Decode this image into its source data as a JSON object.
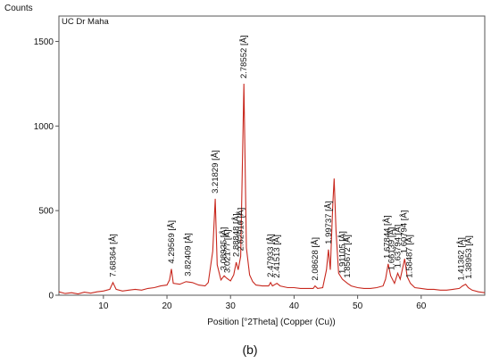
{
  "chart_data": {
    "type": "line",
    "title": "UC Dr Maha",
    "ylabel": "Counts",
    "xlabel": "Position [°2Theta] (Copper (Cu))",
    "caption": "(b)",
    "xlim": [
      3,
      70
    ],
    "ylim": [
      0,
      1650
    ],
    "xticks": [
      10,
      20,
      30,
      40,
      50,
      60
    ],
    "yticks": [
      0,
      500,
      1000,
      1500
    ],
    "grid": false,
    "line_color": "#c8281e",
    "series": [
      {
        "values": [
          [
            3,
            20
          ],
          [
            4,
            10
          ],
          [
            5,
            15
          ],
          [
            6,
            8
          ],
          [
            7,
            18
          ],
          [
            8,
            12
          ],
          [
            9,
            20
          ],
          [
            10,
            25
          ],
          [
            11,
            35
          ],
          [
            11.5,
            75
          ],
          [
            12,
            35
          ],
          [
            13,
            25
          ],
          [
            14,
            30
          ],
          [
            15,
            35
          ],
          [
            16,
            30
          ],
          [
            17,
            40
          ],
          [
            18,
            45
          ],
          [
            19,
            55
          ],
          [
            20,
            60
          ],
          [
            20.4,
            90
          ],
          [
            20.7,
            155
          ],
          [
            21,
            70
          ],
          [
            22,
            65
          ],
          [
            23,
            80
          ],
          [
            24,
            75
          ],
          [
            25,
            60
          ],
          [
            26,
            55
          ],
          [
            26.5,
            75
          ],
          [
            27.2,
            260
          ],
          [
            27.6,
            570
          ],
          [
            27.9,
            180
          ],
          [
            28.5,
            90
          ],
          [
            29,
            115
          ],
          [
            29.4,
            100
          ],
          [
            30,
            85
          ],
          [
            30.5,
            120
          ],
          [
            30.9,
            195
          ],
          [
            31.2,
            150
          ],
          [
            31.6,
            230
          ],
          [
            32.1,
            1250
          ],
          [
            32.5,
            280
          ],
          [
            33,
            120
          ],
          [
            33.5,
            80
          ],
          [
            34,
            60
          ],
          [
            35,
            55
          ],
          [
            36,
            55
          ],
          [
            36.3,
            75
          ],
          [
            36.6,
            55
          ],
          [
            37.3,
            70
          ],
          [
            37.8,
            55
          ],
          [
            39,
            45
          ],
          [
            40,
            45
          ],
          [
            41,
            40
          ],
          [
            42,
            40
          ],
          [
            43,
            40
          ],
          [
            43.3,
            55
          ],
          [
            43.7,
            40
          ],
          [
            44.5,
            45
          ],
          [
            45.1,
            150
          ],
          [
            45.4,
            270
          ],
          [
            45.7,
            150
          ],
          [
            46.1,
            540
          ],
          [
            46.3,
            690
          ],
          [
            46.6,
            380
          ],
          [
            47,
            130
          ],
          [
            47.6,
            95
          ],
          [
            48.4,
            70
          ],
          [
            49,
            55
          ],
          [
            50,
            45
          ],
          [
            51,
            40
          ],
          [
            52,
            40
          ],
          [
            53,
            45
          ],
          [
            54,
            55
          ],
          [
            54.4,
            95
          ],
          [
            54.8,
            185
          ],
          [
            55.2,
            115
          ],
          [
            55.8,
            70
          ],
          [
            56.3,
            130
          ],
          [
            56.7,
            95
          ],
          [
            57.4,
            215
          ],
          [
            57.8,
            110
          ],
          [
            58.3,
            70
          ],
          [
            59,
            45
          ],
          [
            60,
            40
          ],
          [
            61,
            35
          ],
          [
            62,
            35
          ],
          [
            63,
            30
          ],
          [
            64,
            30
          ],
          [
            65,
            35
          ],
          [
            66,
            40
          ],
          [
            66.5,
            55
          ],
          [
            67,
            65
          ],
          [
            67.4,
            45
          ],
          [
            68,
            30
          ],
          [
            69,
            20
          ],
          [
            70,
            15
          ]
        ]
      }
    ],
    "peaks": [
      {
        "x": 11.5,
        "y": 75,
        "label": "7.68364 [Å]"
      },
      {
        "x": 20.7,
        "y": 155,
        "label": "4.29569 [Å]"
      },
      {
        "x": 23.3,
        "y": 80,
        "label": "3.82409 [Å]"
      },
      {
        "x": 27.6,
        "y": 570,
        "label": "3.21829 [Å]"
      },
      {
        "x": 28.9,
        "y": 115,
        "label": "3.08935 [Å]"
      },
      {
        "x": 29.5,
        "y": 100,
        "label": "3.02177 [Å]"
      },
      {
        "x": 30.9,
        "y": 195,
        "label": "2.88848 [Å]"
      },
      {
        "x": 31.6,
        "y": 230,
        "label": "2.82910 [Å]"
      },
      {
        "x": 32.1,
        "y": 1250,
        "label": "2.78552 [Å]"
      },
      {
        "x": 36.3,
        "y": 75,
        "label": "2.47933 [Å]"
      },
      {
        "x": 37.3,
        "y": 70,
        "label": "2.41513 [Å]"
      },
      {
        "x": 43.3,
        "y": 55,
        "label": "2.08628 [Å]"
      },
      {
        "x": 45.4,
        "y": 270,
        "label": "1.99737 [Å]"
      },
      {
        "x": 47.6,
        "y": 95,
        "label": "1.91105 [Å]"
      },
      {
        "x": 48.4,
        "y": 70,
        "label": "1.85672 [Å]"
      },
      {
        "x": 54.6,
        "y": 185,
        "label": "1.67844 [Å]"
      },
      {
        "x": 55.3,
        "y": 115,
        "label": "1.66139 [Å]"
      },
      {
        "x": 56.3,
        "y": 130,
        "label": "1.63794 [Å]"
      },
      {
        "x": 57.3,
        "y": 215,
        "label": "1.60794 [Å]"
      },
      {
        "x": 58.1,
        "y": 70,
        "label": "1.58487 [Å]"
      },
      {
        "x": 66.3,
        "y": 55,
        "label": "1.41362 [Å]"
      },
      {
        "x": 67.5,
        "y": 65,
        "label": "1.38953 [Å]"
      }
    ]
  }
}
